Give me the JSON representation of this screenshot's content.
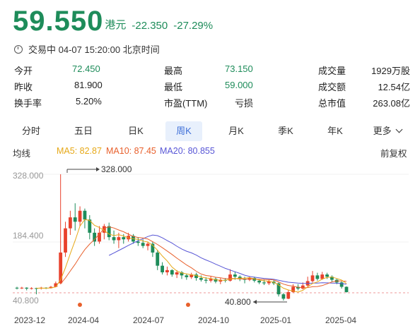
{
  "header": {
    "price": "59.550",
    "currency": "港元",
    "change": "-22.350",
    "change_pct": "-27.29%"
  },
  "status": {
    "text": "交易中 04-07 15:20:00 北京时间"
  },
  "stats": {
    "rows": [
      [
        {
          "label": "今开",
          "value": "72.450"
        },
        {
          "label": "最高",
          "value": "73.150"
        },
        {
          "label": "成交量",
          "value": "1929万股"
        }
      ],
      [
        {
          "label": "昨收",
          "value": "81.900"
        },
        {
          "label": "最低",
          "value": "59.000"
        },
        {
          "label": "成交额",
          "value": "12.54亿"
        }
      ],
      [
        {
          "label": "换手率",
          "value": "5.20%"
        },
        {
          "label": "市盈(TTM)",
          "value": "亏损"
        },
        {
          "label": "总市值",
          "value": "263.08亿"
        }
      ]
    ]
  },
  "tabs": [
    {
      "label": "分时"
    },
    {
      "label": "五日"
    },
    {
      "label": "日K"
    },
    {
      "label": "周K"
    },
    {
      "label": "月K"
    },
    {
      "label": "季K"
    },
    {
      "label": "年K"
    },
    {
      "label": "更多"
    }
  ],
  "active_tab": "周K",
  "ma_bar": {
    "title": "均线",
    "ma5": "MA5: 82.87",
    "ma10": "MA10: 87.45",
    "ma20": "MA20: 80.855",
    "adjust": "前复权"
  },
  "colors": {
    "up": "#e8412c",
    "down": "#1e8c5a",
    "ma5": "#e6a817",
    "ma10": "#e8602c",
    "ma20": "#5856d6",
    "active_tab": "#3e6fd8"
  },
  "chart_data": {
    "type": "candlestick",
    "y_labels": [
      "328.000",
      "184.400",
      "40.800"
    ],
    "x_labels": [
      "2023-12",
      "2024-04",
      "2024-07",
      "2024-10",
      "2025-01",
      "2025-04"
    ],
    "annotations": [
      {
        "text": "328.000"
      },
      {
        "text": "40.800"
      }
    ],
    "ylim": [
      40.8,
      328.0
    ],
    "candles_approx": [
      [
        70,
        69,
        72,
        66
      ],
      [
        69,
        70,
        72,
        67
      ],
      [
        70,
        68,
        71,
        64
      ],
      [
        68,
        69,
        71,
        66
      ],
      [
        69,
        68,
        70,
        55
      ],
      [
        68,
        70,
        72,
        66
      ],
      [
        70,
        69,
        71,
        67
      ],
      [
        69,
        72,
        74,
        68
      ],
      [
        72,
        80,
        84,
        71
      ],
      [
        80,
        150,
        328,
        78
      ],
      [
        150,
        205,
        220,
        140
      ],
      [
        205,
        230,
        245,
        190
      ],
      [
        230,
        220,
        262,
        200
      ],
      [
        220,
        245,
        255,
        210
      ],
      [
        245,
        225,
        250,
        205
      ],
      [
        225,
        195,
        235,
        180
      ],
      [
        195,
        175,
        205,
        165
      ],
      [
        175,
        195,
        210,
        170
      ],
      [
        195,
        210,
        215,
        180
      ],
      [
        210,
        185,
        218,
        178
      ],
      [
        185,
        178,
        200,
        170
      ],
      [
        178,
        185,
        195,
        160
      ],
      [
        185,
        180,
        192,
        170
      ],
      [
        180,
        188,
        195,
        175
      ],
      [
        188,
        175,
        192,
        170
      ],
      [
        175,
        172,
        185,
        165
      ],
      [
        172,
        165,
        180,
        160
      ],
      [
        165,
        170,
        175,
        155
      ],
      [
        170,
        150,
        175,
        140
      ],
      [
        150,
        120,
        155,
        110
      ],
      [
        120,
        105,
        128,
        100
      ],
      [
        105,
        110,
        118,
        98
      ],
      [
        110,
        100,
        112,
        95
      ],
      [
        100,
        105,
        110,
        92
      ],
      [
        105,
        98,
        108,
        90
      ],
      [
        98,
        94,
        102,
        88
      ],
      [
        94,
        100,
        104,
        90
      ],
      [
        100,
        92,
        104,
        86
      ],
      [
        92,
        88,
        98,
        84
      ],
      [
        88,
        86,
        94,
        80
      ],
      [
        86,
        90,
        96,
        82
      ],
      [
        90,
        84,
        94,
        80
      ],
      [
        84,
        88,
        92,
        78
      ],
      [
        88,
        86,
        92,
        82
      ],
      [
        86,
        100,
        112,
        84
      ],
      [
        100,
        95,
        106,
        88
      ],
      [
        95,
        90,
        98,
        85
      ],
      [
        90,
        88,
        95,
        80
      ],
      [
        88,
        92,
        96,
        85
      ],
      [
        92,
        86,
        95,
        82
      ],
      [
        86,
        82,
        90,
        78
      ],
      [
        82,
        80,
        88,
        76
      ],
      [
        80,
        84,
        88,
        76
      ],
      [
        84,
        80,
        87,
        76
      ],
      [
        80,
        55,
        82,
        50
      ],
      [
        55,
        45,
        58,
        40.8
      ],
      [
        45,
        60,
        65,
        44
      ],
      [
        60,
        72,
        78,
        58
      ],
      [
        72,
        68,
        78,
        64
      ],
      [
        68,
        75,
        82,
        66
      ],
      [
        75,
        85,
        95,
        72
      ],
      [
        85,
        98,
        108,
        82
      ],
      [
        98,
        90,
        104,
        86
      ],
      [
        90,
        100,
        106,
        88
      ],
      [
        100,
        95,
        104,
        90
      ],
      [
        95,
        88,
        98,
        84
      ],
      [
        88,
        82,
        90,
        78
      ],
      [
        82,
        72,
        84,
        68
      ],
      [
        72,
        60,
        73,
        59
      ]
    ]
  }
}
